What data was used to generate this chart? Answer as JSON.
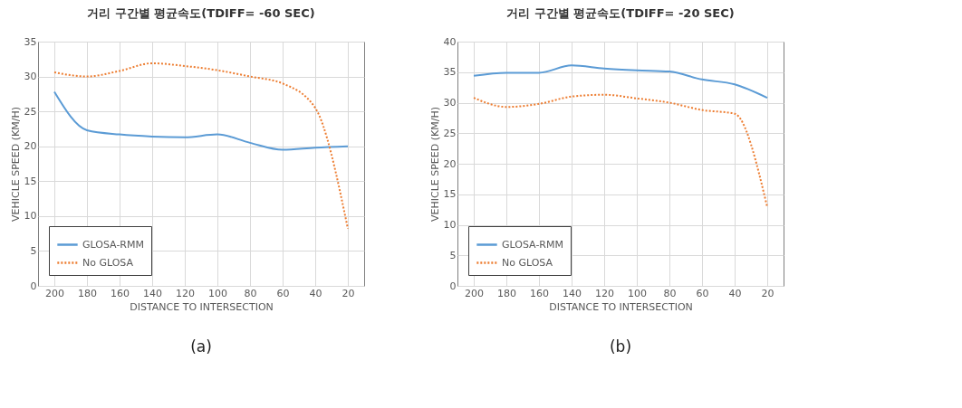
{
  "chart_data": [
    {
      "type": "line",
      "title": "거리 구간별 평균속도(TDIFF= -60 SEC)",
      "xlabel": "DISTANCE TO INTERSECTION",
      "ylabel": "VEHICLE SPEED (KM/H)",
      "categories": [
        "200",
        "180",
        "160",
        "140",
        "120",
        "100",
        "80",
        "60",
        "40",
        "20"
      ],
      "series": [
        {
          "name": "GLOSA-RMM",
          "color": "#5b9bd5",
          "line_style": "solid",
          "values": [
            27.8,
            22.3,
            21.7,
            21.4,
            21.3,
            21.7,
            20.5,
            19.5,
            19.8,
            20.0
          ]
        },
        {
          "name": "No GLOSA",
          "color": "#ed7d31",
          "line_style": "dotted",
          "values": [
            30.6,
            30.0,
            30.8,
            31.9,
            31.5,
            30.9,
            30.0,
            29.0,
            25.5,
            8.2
          ]
        }
      ],
      "ylim": [
        0,
        35
      ],
      "yticks": [
        0,
        5,
        10,
        15,
        20,
        25,
        30,
        35
      ],
      "grid": true,
      "legend": "bottom left",
      "marker": "none",
      "annotations": [
        "(a)"
      ]
    },
    {
      "type": "line",
      "title": "거리 구간별 평균속도(TDIFF= -20 SEC)",
      "xlabel": "DISTANCE TO INTERSECTION",
      "ylabel": "VEHICLE SPEED (KM/H)",
      "categories": [
        "200",
        "180",
        "160",
        "140",
        "120",
        "100",
        "80",
        "60",
        "40",
        "20"
      ],
      "series": [
        {
          "name": "GLOSA-RMM",
          "color": "#5b9bd5",
          "line_style": "solid",
          "values": [
            34.4,
            34.9,
            34.9,
            36.1,
            35.6,
            35.3,
            35.1,
            33.8,
            33.0,
            30.8
          ]
        },
        {
          "name": "No GLOSA",
          "color": "#ed7d31",
          "line_style": "dotted",
          "values": [
            30.8,
            29.3,
            29.8,
            31.0,
            31.3,
            30.7,
            30.0,
            28.8,
            28.2,
            12.9
          ]
        }
      ],
      "ylim": [
        0,
        40
      ],
      "yticks": [
        0,
        5,
        10,
        15,
        20,
        25,
        30,
        35,
        40
      ],
      "grid": true,
      "legend": "bottom left",
      "marker": "none",
      "annotations": [
        "(b)"
      ]
    }
  ]
}
